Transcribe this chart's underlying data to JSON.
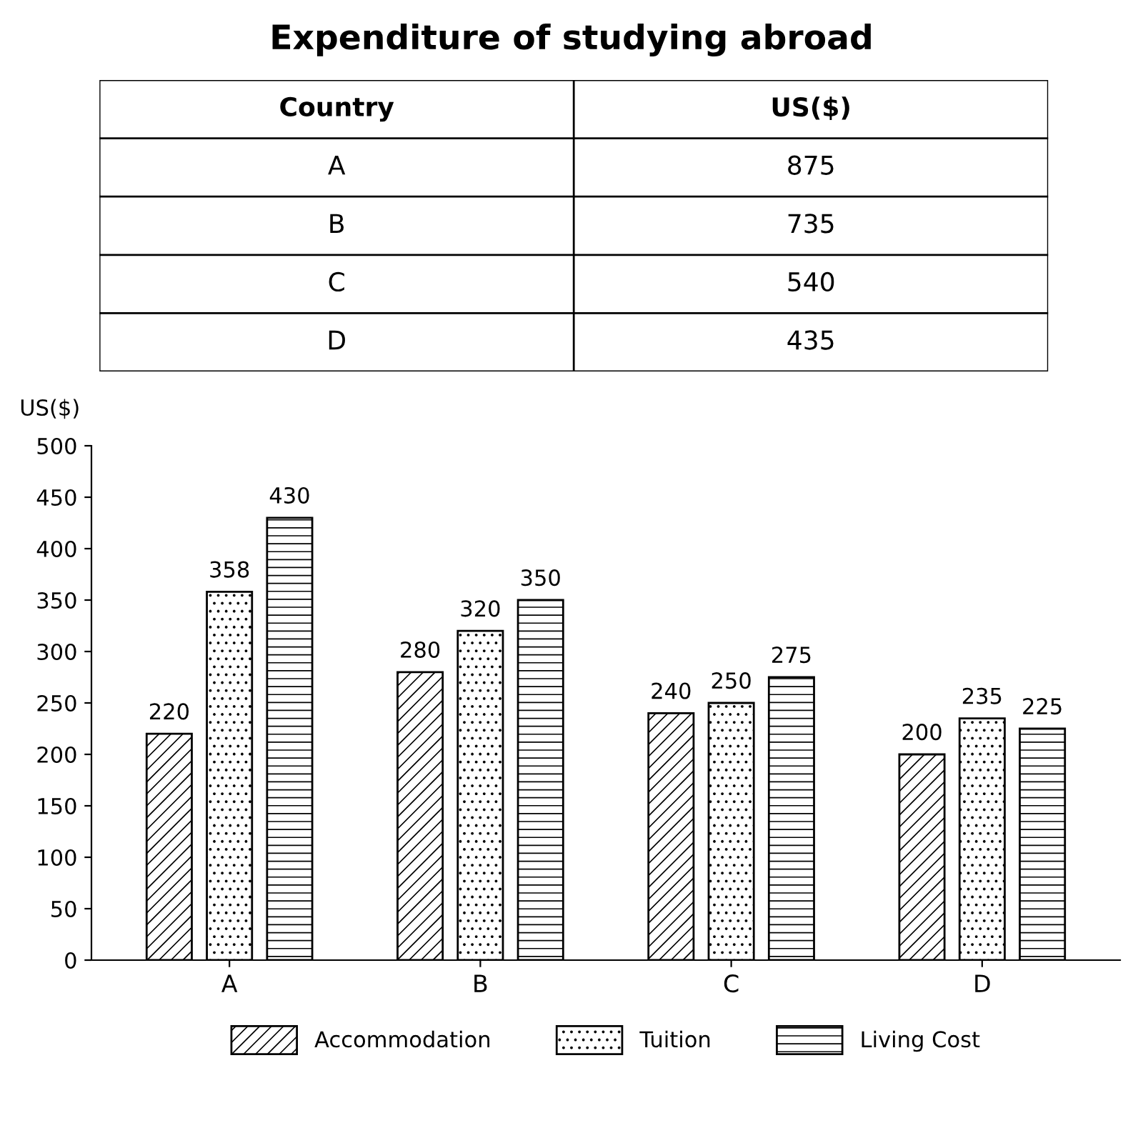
{
  "chart_data": [
    {
      "type": "other",
      "title": "Expenditure of studying abroad",
      "annotations": [
        "Country",
        "US($)",
        "A",
        "875",
        "B",
        "735",
        "C",
        "540",
        "D",
        "435"
      ]
    },
    {
      "type": "bar",
      "ylabel": "US($)",
      "categories": [
        "A",
        "B",
        "C",
        "D"
      ],
      "series": [
        {
          "name": "Accommodation",
          "color": "#000000",
          "values": [
            220,
            280,
            240,
            200
          ]
        },
        {
          "name": "Tuition",
          "color": "#000000",
          "values": [
            358,
            320,
            250,
            235
          ]
        },
        {
          "name": "Living Cost",
          "color": "#000000",
          "values": [
            430,
            350,
            275,
            225
          ]
        }
      ],
      "ylim": [
        0,
        500
      ],
      "yticks": [
        0,
        50,
        100,
        150,
        200,
        250,
        300,
        350,
        400,
        450,
        500
      ],
      "grid": false,
      "legend": "bottom",
      "data_labels": true
    }
  ]
}
